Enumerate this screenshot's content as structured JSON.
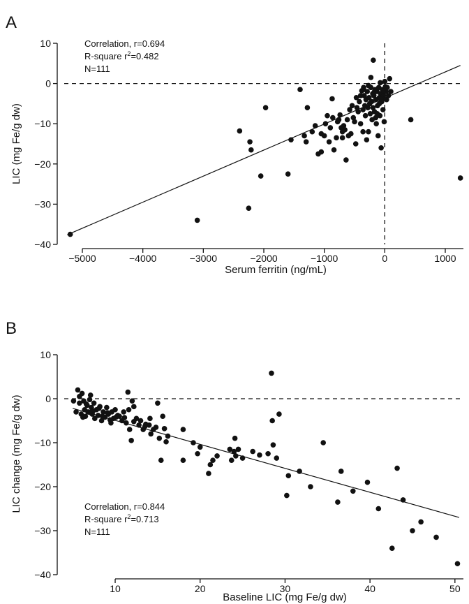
{
  "chart_data": [
    {
      "panel": "A",
      "type": "scatter",
      "xlabel": "Serum ferritin (ng/mL)",
      "ylabel": "LIC (mg Fe/g dw)",
      "xlim": [
        -5300,
        1300
      ],
      "ylim": [
        -40,
        10
      ],
      "xticks": [
        -5000,
        -4000,
        -3000,
        -2000,
        -1000,
        0,
        1000
      ],
      "xtick_labels": [
        "−5000",
        "−4000",
        "−3000",
        "−2000",
        "−1000",
        "0",
        "1000"
      ],
      "yticks": [
        -40,
        -30,
        -20,
        -10,
        0,
        10
      ],
      "ytick_labels": [
        "−40",
        "−30",
        "−20",
        "−10",
        "0",
        "10"
      ],
      "reference_lines": {
        "horizontal_dashed": 0,
        "vertical_dashed": 0
      },
      "fit_line": {
        "x": [
          -5250,
          1250
        ],
        "y": [
          -37.6,
          4.5
        ]
      },
      "annotations": [
        "Correlation, r=0.694",
        "R-square r",
        "2",
        "=0.482",
        "N=111"
      ],
      "points": [
        [
          -5200,
          -37.5
        ],
        [
          -3100,
          -34
        ],
        [
          -2250,
          -31
        ],
        [
          -2050,
          -23
        ],
        [
          -1600,
          -22.5
        ],
        [
          -2400,
          -11.8
        ],
        [
          -2230,
          -14.5
        ],
        [
          -2210,
          -16.5
        ],
        [
          -1970,
          -6
        ],
        [
          -1550,
          -14
        ],
        [
          -1400,
          -1.5
        ],
        [
          -1330,
          -13
        ],
        [
          -1300,
          -14.5
        ],
        [
          -1280,
          -6
        ],
        [
          -1200,
          -12
        ],
        [
          -1150,
          -10.5
        ],
        [
          -1100,
          -17.5
        ],
        [
          -1050,
          -17
        ],
        [
          -1000,
          -13
        ],
        [
          -980,
          -10
        ],
        [
          -950,
          -8
        ],
        [
          -920,
          -14.5
        ],
        [
          -900,
          -11
        ],
        [
          -870,
          -3.8
        ],
        [
          -860,
          -8.5
        ],
        [
          -840,
          -16.5
        ],
        [
          -800,
          -13.5
        ],
        [
          -760,
          -9
        ],
        [
          -740,
          -7.8
        ],
        [
          -700,
          -12
        ],
        [
          -680,
          -10.5
        ],
        [
          -660,
          -11.5
        ],
        [
          -640,
          -19
        ],
        [
          -600,
          -13
        ],
        [
          -560,
          -12.5
        ],
        [
          -540,
          -5.5
        ],
        [
          -500,
          -9.5
        ],
        [
          -480,
          -15
        ],
        [
          -460,
          -6
        ],
        [
          -440,
          -7
        ],
        [
          -420,
          -4.5
        ],
        [
          -400,
          -10
        ],
        [
          -380,
          -1.8
        ],
        [
          -360,
          -6.5
        ],
        [
          -340,
          -3
        ],
        [
          -320,
          -8
        ],
        [
          -310,
          -4
        ],
        [
          -300,
          -14
        ],
        [
          -290,
          -2
        ],
        [
          -280,
          -6
        ],
        [
          -270,
          -12
        ],
        [
          -260,
          -3.5
        ],
        [
          -250,
          -5
        ],
        [
          -240,
          -7.5
        ],
        [
          -230,
          -1
        ],
        [
          -220,
          -4.5
        ],
        [
          -210,
          -9
        ],
        [
          -200,
          -2.5
        ],
        [
          -195,
          -6
        ],
        [
          -190,
          5.8
        ],
        [
          -180,
          -3
        ],
        [
          -170,
          -7
        ],
        [
          -160,
          -1.5
        ],
        [
          -150,
          -4
        ],
        [
          -140,
          -10
        ],
        [
          -130,
          -2
        ],
        [
          -120,
          -5.5
        ],
        [
          -110,
          -13
        ],
        [
          -100,
          -1
        ],
        [
          -90,
          -3.5
        ],
        [
          -80,
          -8
        ],
        [
          -70,
          -2.5
        ],
        [
          -60,
          -16
        ],
        [
          -50,
          -4.5
        ],
        [
          -40,
          -1.5
        ],
        [
          -30,
          -6.5
        ],
        [
          -20,
          -3
        ],
        [
          -10,
          -9.5
        ],
        [
          0,
          0.5
        ],
        [
          20,
          -2
        ],
        [
          30,
          -4
        ],
        [
          40,
          -1
        ],
        [
          60,
          -3
        ],
        [
          80,
          1.2
        ],
        [
          100,
          -2
        ],
        [
          -350,
          -1.5
        ],
        [
          -330,
          -5.5
        ],
        [
          -230,
          1.5
        ],
        [
          -170,
          -2
        ],
        [
          -125,
          -7.5
        ],
        [
          -75,
          0.2
        ],
        [
          -45,
          -3.8
        ],
        [
          -25,
          -1.8
        ],
        [
          10,
          -0.8
        ],
        [
          -470,
          -3.5
        ],
        [
          -520,
          -8.5
        ],
        [
          -580,
          -6.5
        ],
        [
          -620,
          -9
        ],
        [
          -720,
          -11
        ],
        [
          -780,
          -9.5
        ],
        [
          -270,
          -0.5
        ],
        [
          -150,
          -8.5
        ],
        [
          -60,
          -4
        ],
        [
          -400,
          -3
        ],
        [
          -360,
          -12
        ],
        [
          -700,
          -13.5
        ],
        [
          -350,
          -1
        ],
        [
          -90,
          -5
        ],
        [
          430,
          -9
        ],
        [
          1250,
          -23.5
        ],
        [
          -1050,
          -12.5
        ]
      ]
    },
    {
      "panel": "B",
      "type": "scatter",
      "xlabel": "Baseline LIC (mg Fe/g dw)",
      "ylabel": "LIC change (mg Fe/g dw)",
      "xlim": [
        4,
        51
      ],
      "ylim": [
        -40,
        10
      ],
      "xticks": [
        10,
        20,
        30,
        40,
        50
      ],
      "xtick_labels": [
        "10",
        "20",
        "30",
        "40",
        "50"
      ],
      "yticks": [
        -40,
        -30,
        -20,
        -10,
        0,
        10
      ],
      "ytick_labels": [
        "−40",
        "−30",
        "−20",
        "−10",
        "0",
        "10"
      ],
      "reference_lines": {
        "horizontal_dashed": 0
      },
      "fit_line": {
        "x": [
          5,
          50.5
        ],
        "y": [
          -2.2,
          -27
        ]
      },
      "annotations": [
        "Correlation, r=0.844",
        "R-square r",
        "2",
        "=0.713",
        "N=111"
      ],
      "points": [
        [
          5.1,
          -0.5
        ],
        [
          5.4,
          -3
        ],
        [
          5.6,
          2
        ],
        [
          5.8,
          -1
        ],
        [
          6,
          -3.5
        ],
        [
          6.1,
          1.2
        ],
        [
          6.3,
          -0.5
        ],
        [
          6.4,
          -2.5
        ],
        [
          6.5,
          -4
        ],
        [
          6.7,
          -1.5
        ],
        [
          6.8,
          -3
        ],
        [
          7,
          -0.2
        ],
        [
          7.1,
          0.8
        ],
        [
          7.2,
          -2
        ],
        [
          7.3,
          -3.5
        ],
        [
          7.5,
          -1
        ],
        [
          7.6,
          -4.5
        ],
        [
          7.8,
          -2.5
        ],
        [
          8,
          -3.8
        ],
        [
          8.2,
          -1.8
        ],
        [
          8.4,
          -5
        ],
        [
          8.6,
          -3
        ],
        [
          8.8,
          -4.2
        ],
        [
          9,
          -2
        ],
        [
          9.2,
          -3.5
        ],
        [
          9.4,
          -4.8
        ],
        [
          9.6,
          -3
        ],
        [
          9.8,
          -4.5
        ],
        [
          10,
          -2.5
        ],
        [
          10.3,
          -3.8
        ],
        [
          10.5,
          -4
        ],
        [
          10.8,
          -5
        ],
        [
          11,
          -3
        ],
        [
          11.3,
          -5.5
        ],
        [
          11.5,
          1.5
        ],
        [
          11.7,
          -7
        ],
        [
          11.9,
          -9.5
        ],
        [
          12,
          -0.5
        ],
        [
          12.2,
          -1.8
        ],
        [
          12.5,
          -4.5
        ],
        [
          12.8,
          -6
        ],
        [
          13,
          -5
        ],
        [
          13.3,
          -7
        ],
        [
          13.6,
          -5.8
        ],
        [
          14,
          -6
        ],
        [
          14.2,
          -8
        ],
        [
          14.5,
          -7
        ],
        [
          14.8,
          -6.5
        ],
        [
          15,
          -1
        ],
        [
          15.2,
          -9
        ],
        [
          15.4,
          -14
        ],
        [
          15.6,
          -4
        ],
        [
          15.8,
          -6.8
        ],
        [
          16,
          -9.8
        ],
        [
          18,
          -7
        ],
        [
          18,
          -14
        ],
        [
          19.2,
          -10
        ],
        [
          19.7,
          -12.5
        ],
        [
          20,
          -11
        ],
        [
          21,
          -17
        ],
        [
          21.2,
          -15
        ],
        [
          21.5,
          -14
        ],
        [
          23.5,
          -11.5
        ],
        [
          23.7,
          -14
        ],
        [
          24,
          -12
        ],
        [
          24.1,
          -9
        ],
        [
          24.2,
          -13
        ],
        [
          24.5,
          -11.5
        ],
        [
          27,
          -12.8
        ],
        [
          28,
          -12.5
        ],
        [
          28.4,
          5.8
        ],
        [
          28.6,
          -10.5
        ],
        [
          29,
          -13.5
        ],
        [
          29.3,
          -3.5
        ],
        [
          30.2,
          -22
        ],
        [
          30.4,
          -17.5
        ],
        [
          31.7,
          -16.5
        ],
        [
          34.5,
          -10
        ],
        [
          36.2,
          -23.5
        ],
        [
          36.6,
          -16.5
        ],
        [
          39.7,
          -19
        ],
        [
          42.6,
          -34
        ],
        [
          43.2,
          -15.8
        ],
        [
          43.9,
          -23
        ],
        [
          47.8,
          -31.5
        ],
        [
          50.3,
          -37.5
        ],
        [
          5.8,
          0.5
        ],
        [
          6.6,
          -1.2
        ],
        [
          7.4,
          -2.8
        ],
        [
          8.5,
          -4
        ],
        [
          9.1,
          -3.2
        ],
        [
          10.1,
          -4.2
        ],
        [
          11.1,
          -4.3
        ],
        [
          12.2,
          -5.2
        ],
        [
          13.5,
          -6.3
        ],
        [
          6.2,
          -4.2
        ],
        [
          7,
          -3.1
        ],
        [
          8.1,
          -2.2
        ],
        [
          9.5,
          -5.5
        ],
        [
          11.6,
          -2.5
        ],
        [
          14.1,
          -4.5
        ],
        [
          16.2,
          -8.5
        ],
        [
          22,
          -13
        ],
        [
          25,
          -13.5
        ],
        [
          28.5,
          -5
        ],
        [
          26.2,
          -12
        ],
        [
          33,
          -20
        ],
        [
          38,
          -21
        ],
        [
          41,
          -25
        ],
        [
          45,
          -30
        ],
        [
          46,
          -28
        ]
      ]
    }
  ]
}
